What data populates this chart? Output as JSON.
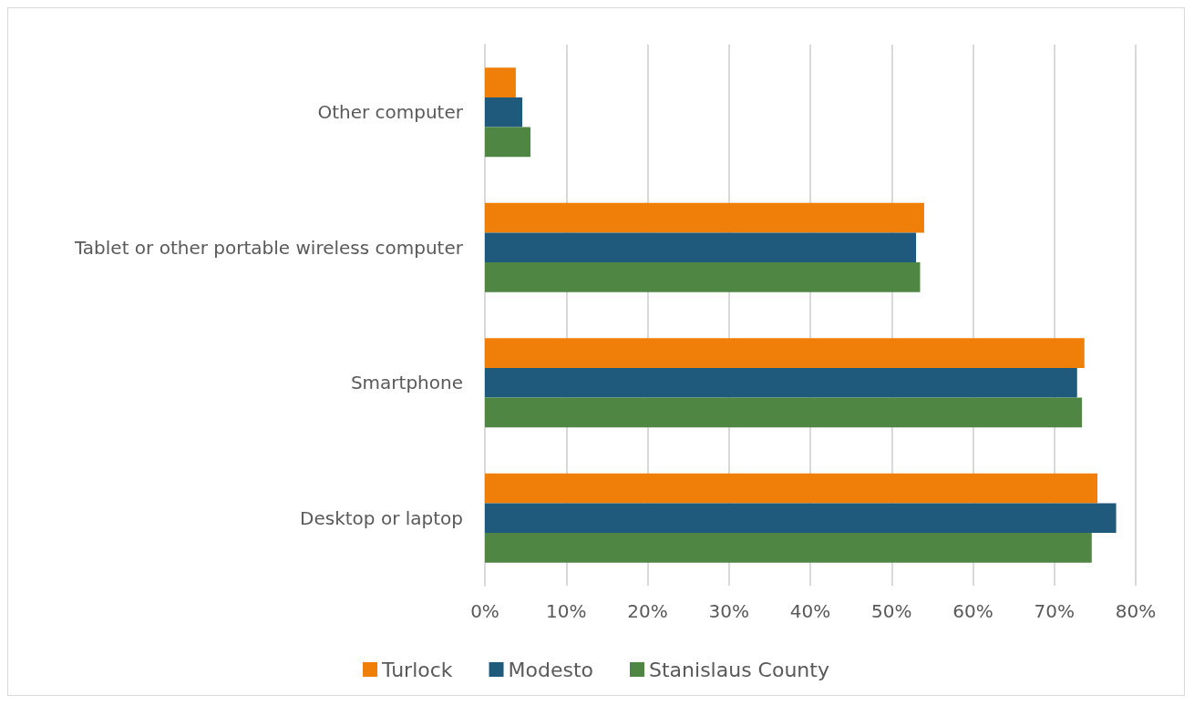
{
  "chart_data": {
    "type": "bar",
    "orientation": "horizontal",
    "categories": [
      "Other computer",
      "Tablet or other portable wireless computer",
      "Smartphone",
      "Desktop or laptop"
    ],
    "series": [
      {
        "name": "Turlock",
        "color": "#f07f09",
        "values": [
          3.8,
          54.0,
          73.7,
          75.3
        ]
      },
      {
        "name": "Modesto",
        "color": "#1f5a7c",
        "values": [
          4.6,
          53.0,
          72.8,
          77.6
        ]
      },
      {
        "name": "Stanislaus County",
        "color": "#4f8643",
        "values": [
          5.6,
          53.5,
          73.4,
          74.6
        ]
      }
    ],
    "xlim": [
      0,
      80
    ],
    "xticks": [
      {
        "value": 0,
        "label": "0%"
      },
      {
        "value": 10,
        "label": "10%"
      },
      {
        "value": 20,
        "label": "20%"
      },
      {
        "value": 30,
        "label": "30%"
      },
      {
        "value": 40,
        "label": "40%"
      },
      {
        "value": 50,
        "label": "50%"
      },
      {
        "value": 60,
        "label": "60%"
      },
      {
        "value": 70,
        "label": "70%"
      },
      {
        "value": 80,
        "label": "80%"
      }
    ],
    "grid": "x",
    "legend": "bottom"
  }
}
